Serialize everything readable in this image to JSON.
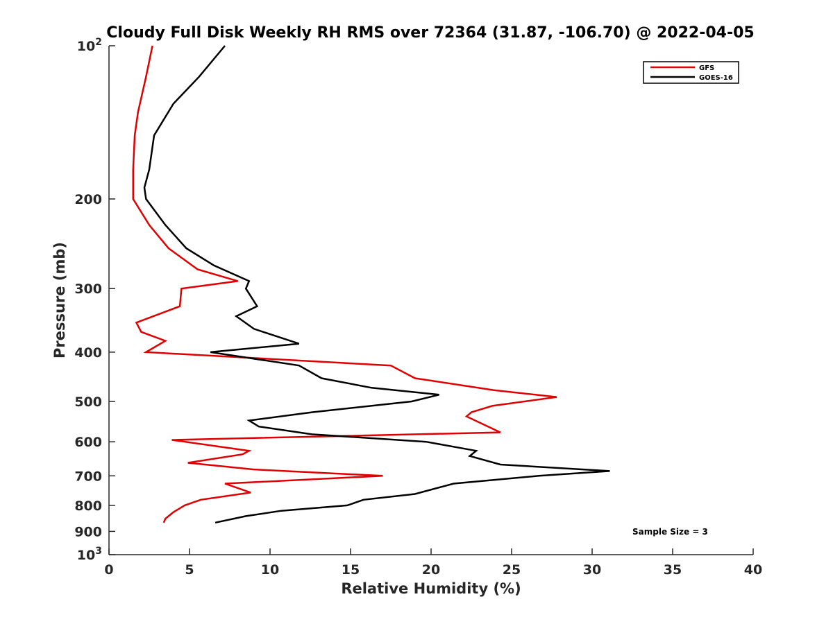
{
  "chart_data": {
    "type": "line",
    "title": "Cloudy Full Disk Weekly RH RMS over 72364 (31.87, -106.70) @ 2022-04-05",
    "xlabel": "Relative Humidity (%)",
    "ylabel": "Pressure (mb)",
    "xlim": [
      0,
      40
    ],
    "ylim": [
      100,
      1000
    ],
    "y_scale": "log",
    "y_reversed": true,
    "xticks": [
      0,
      5,
      10,
      15,
      20,
      25,
      30,
      35,
      40
    ],
    "yticks": [
      {
        "value": 100,
        "base": "10",
        "exp": "2"
      },
      {
        "value": 200,
        "label": "200"
      },
      {
        "value": 300,
        "label": "300"
      },
      {
        "value": 400,
        "label": "400"
      },
      {
        "value": 500,
        "label": "500"
      },
      {
        "value": 600,
        "label": "600"
      },
      {
        "value": 700,
        "label": "700"
      },
      {
        "value": 800,
        "label": "800"
      },
      {
        "value": 900,
        "label": "900"
      },
      {
        "value": 1000,
        "base": "10",
        "exp": "3"
      }
    ],
    "grid": false,
    "legend_position": "top-right",
    "annotation": "Sample Size = 3",
    "series": [
      {
        "name": "GFS",
        "color": "#e00000",
        "points": [
          [
            2.7,
            100
          ],
          [
            2.3,
            115
          ],
          [
            1.8,
            135
          ],
          [
            1.6,
            150
          ],
          [
            1.5,
            175
          ],
          [
            1.5,
            200
          ],
          [
            2.5,
            225
          ],
          [
            3.7,
            250
          ],
          [
            5.5,
            275
          ],
          [
            8.0,
            290
          ],
          [
            4.5,
            300
          ],
          [
            4.4,
            325
          ],
          [
            1.7,
            350
          ],
          [
            2.0,
            365
          ],
          [
            3.5,
            380
          ],
          [
            2.3,
            400
          ],
          [
            17.5,
            425
          ],
          [
            19.0,
            450
          ],
          [
            23.9,
            475
          ],
          [
            27.8,
            490
          ],
          [
            23.8,
            510
          ],
          [
            22.5,
            525
          ],
          [
            22.2,
            535
          ],
          [
            23.0,
            550
          ],
          [
            24.3,
            575
          ],
          [
            3.9,
            595
          ],
          [
            8.7,
            625
          ],
          [
            8.3,
            635
          ],
          [
            4.9,
            660
          ],
          [
            9.0,
            680
          ],
          [
            17.0,
            700
          ],
          [
            7.2,
            725
          ],
          [
            8.8,
            755
          ],
          [
            5.7,
            780
          ],
          [
            4.7,
            800
          ],
          [
            4.0,
            825
          ],
          [
            3.5,
            850
          ],
          [
            3.4,
            865
          ]
        ]
      },
      {
        "name": "GOES-16",
        "color": "#000000",
        "points": [
          [
            7.2,
            100
          ],
          [
            5.6,
            115
          ],
          [
            4.0,
            130
          ],
          [
            2.8,
            150
          ],
          [
            2.5,
            175
          ],
          [
            2.2,
            190
          ],
          [
            2.3,
            200
          ],
          [
            3.5,
            225
          ],
          [
            4.8,
            250
          ],
          [
            6.5,
            270
          ],
          [
            8.7,
            290
          ],
          [
            8.5,
            300
          ],
          [
            9.2,
            325
          ],
          [
            7.9,
            340
          ],
          [
            9.0,
            360
          ],
          [
            11.8,
            385
          ],
          [
            6.3,
            400
          ],
          [
            11.8,
            425
          ],
          [
            13.2,
            450
          ],
          [
            16.3,
            470
          ],
          [
            20.5,
            485
          ],
          [
            18.8,
            500
          ],
          [
            12.6,
            525
          ],
          [
            8.7,
            545
          ],
          [
            9.3,
            560
          ],
          [
            12.6,
            580
          ],
          [
            19.7,
            600
          ],
          [
            22.8,
            625
          ],
          [
            22.4,
            640
          ],
          [
            24.3,
            665
          ],
          [
            31.1,
            685
          ],
          [
            26.7,
            700
          ],
          [
            21.4,
            725
          ],
          [
            19.0,
            760
          ],
          [
            15.8,
            780
          ],
          [
            14.8,
            800
          ],
          [
            10.7,
            820
          ],
          [
            8.5,
            840
          ],
          [
            6.6,
            865
          ]
        ]
      }
    ]
  }
}
